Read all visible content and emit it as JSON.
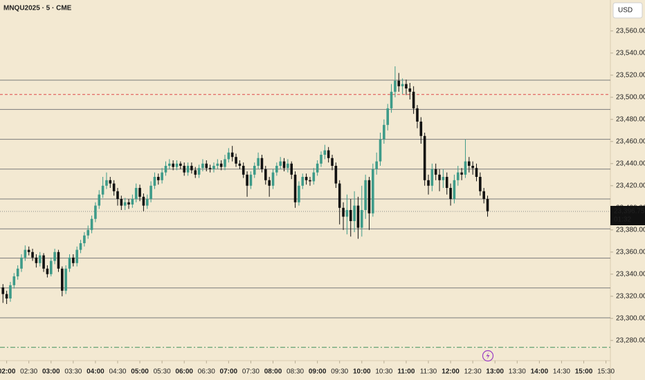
{
  "chart_data": {
    "type": "candlestick",
    "title": "MNQU2025 · 5 · CME",
    "currency": "USD",
    "up_color": "#3e9b89",
    "down_color": "#111111",
    "x": [
      115,
      120,
      125,
      130,
      135,
      140,
      145,
      150,
      155,
      160,
      165,
      170,
      175,
      180,
      185,
      190,
      195,
      200,
      205,
      210,
      215,
      220,
      225,
      230,
      235,
      240,
      245,
      250,
      255,
      260,
      265,
      270,
      275,
      280,
      285,
      290,
      295,
      300,
      305,
      310,
      315,
      320,
      325,
      330,
      335,
      340,
      345,
      350,
      355,
      360,
      365,
      370,
      375,
      380,
      385,
      390,
      395,
      400,
      405,
      410,
      415,
      420,
      425,
      430,
      435,
      440,
      445,
      450,
      455,
      460,
      465,
      470,
      475,
      480,
      485,
      490,
      495,
      500,
      505,
      510,
      515,
      520,
      525,
      530,
      535,
      540,
      545,
      550,
      555,
      560,
      565,
      570,
      575,
      580,
      585,
      590,
      595,
      600,
      605,
      610,
      615,
      620,
      625,
      630,
      635,
      640,
      645,
      650,
      655,
      660,
      665,
      670,
      675,
      680,
      685,
      690,
      695,
      700,
      705,
      710,
      715,
      720,
      725,
      730,
      735,
      740,
      745,
      750,
      755,
      760,
      765,
      770
    ],
    "open": [
      23328,
      23322,
      23318,
      23330,
      23338,
      23345,
      23355,
      23362,
      23360,
      23355,
      23350,
      23357,
      23345,
      23340,
      23352,
      23360,
      23345,
      23325,
      23345,
      23355,
      23350,
      23362,
      23368,
      23375,
      23380,
      23390,
      23402,
      23412,
      23420,
      23425,
      23422,
      23415,
      23408,
      23402,
      23405,
      23403,
      23408,
      23418,
      23410,
      23402,
      23408,
      23420,
      23428,
      23425,
      23432,
      23438,
      23440,
      23437,
      23440,
      23438,
      23432,
      23438,
      23434,
      23430,
      23436,
      23440,
      23436,
      23435,
      23438,
      23440,
      23437,
      23444,
      23450,
      23446,
      23440,
      23438,
      23430,
      23420,
      23430,
      23438,
      23445,
      23435,
      23425,
      23420,
      23432,
      23438,
      23442,
      23436,
      23440,
      23430,
      23405,
      23420,
      23428,
      23425,
      23424,
      23432,
      23440,
      23448,
      23452,
      23445,
      23438,
      23422,
      23400,
      23392,
      23398,
      23388,
      23402,
      23382,
      23398,
      23425,
      23395,
      23435,
      23442,
      23462,
      23475,
      23490,
      23505,
      23515,
      23510,
      23512,
      23508,
      23505,
      23490,
      23478,
      23465,
      23425,
      23420,
      23435,
      23430,
      23425,
      23428,
      23418,
      23408,
      23425,
      23432,
      23430,
      23442,
      23438,
      23436,
      23428,
      23415,
      23408
    ],
    "high": [
      23331,
      23325,
      23333,
      23341,
      23348,
      23358,
      23366,
      23365,
      23363,
      23358,
      23360,
      23359,
      23348,
      23355,
      23363,
      23362,
      23347,
      23348,
      23358,
      23358,
      23365,
      23371,
      23378,
      23384,
      23393,
      23405,
      23416,
      23428,
      23432,
      23428,
      23425,
      23418,
      23411,
      23409,
      23408,
      23412,
      23422,
      23421,
      23413,
      23412,
      23424,
      23432,
      23431,
      23436,
      23442,
      23444,
      23443,
      23443,
      23442,
      23441,
      23441,
      23441,
      23437,
      23439,
      23444,
      23443,
      23439,
      23441,
      23444,
      23443,
      23448,
      23454,
      23456,
      23449,
      23443,
      23441,
      23433,
      23433,
      23441,
      23450,
      23448,
      23438,
      23428,
      23435,
      23441,
      23446,
      23445,
      23444,
      23442,
      23433,
      23424,
      23431,
      23431,
      23428,
      23436,
      23443,
      23451,
      23457,
      23455,
      23448,
      23441,
      23425,
      23405,
      23412,
      23408,
      23415,
      23410,
      23420,
      23430,
      23428,
      23440,
      23450,
      23468,
      23480,
      23494,
      23512,
      23528,
      23522,
      23517,
      23516,
      23513,
      23510,
      23493,
      23482,
      23468,
      23430,
      23440,
      23440,
      23435,
      23435,
      23432,
      23422,
      23430,
      23438,
      23436,
      23462,
      23446,
      23442,
      23440,
      23432,
      23418,
      23411
    ],
    "low": [
      23314,
      23313,
      23315,
      23327,
      23335,
      23342,
      23352,
      23357,
      23352,
      23346,
      23347,
      23342,
      23337,
      23338,
      23349,
      23342,
      23320,
      23322,
      23342,
      23347,
      23347,
      23359,
      23365,
      23372,
      23377,
      23387,
      23399,
      23409,
      23417,
      23418,
      23411,
      23402,
      23398,
      23398,
      23399,
      23400,
      23405,
      23406,
      23397,
      23399,
      23405,
      23417,
      23421,
      23422,
      23429,
      23435,
      23434,
      23434,
      23435,
      23429,
      23429,
      23431,
      23427,
      23427,
      23433,
      23433,
      23432,
      23432,
      23435,
      23434,
      23434,
      23441,
      23442,
      23437,
      23435,
      23427,
      23410,
      23417,
      23427,
      23435,
      23432,
      23421,
      23410,
      23417,
      23429,
      23435,
      23433,
      23432,
      23426,
      23400,
      23402,
      23417,
      23421,
      23420,
      23421,
      23429,
      23437,
      23444,
      23441,
      23434,
      23418,
      23385,
      23380,
      23376,
      23374,
      23378,
      23372,
      23374,
      23390,
      23380,
      23392,
      23430,
      23438,
      23458,
      23470,
      23486,
      23500,
      23505,
      23503,
      23502,
      23498,
      23485,
      23472,
      23458,
      23420,
      23412,
      23415,
      23425,
      23415,
      23418,
      23412,
      23402,
      23404,
      23420,
      23425,
      23427,
      23432,
      23430,
      23424,
      23411,
      23404,
      23392
    ],
    "close": [
      23322,
      23318,
      23330,
      23338,
      23345,
      23355,
      23362,
      23360,
      23355,
      23350,
      23357,
      23345,
      23340,
      23352,
      23360,
      23345,
      23325,
      23345,
      23355,
      23350,
      23362,
      23368,
      23375,
      23380,
      23390,
      23402,
      23412,
      23420,
      23425,
      23422,
      23415,
      23408,
      23402,
      23405,
      23403,
      23408,
      23418,
      23410,
      23402,
      23408,
      23420,
      23428,
      23425,
      23432,
      23438,
      23440,
      23437,
      23440,
      23438,
      23432,
      23438,
      23434,
      23430,
      23436,
      23440,
      23436,
      23435,
      23438,
      23440,
      23437,
      23444,
      23450,
      23446,
      23440,
      23438,
      23430,
      23420,
      23430,
      23438,
      23445,
      23435,
      23425,
      23420,
      23432,
      23438,
      23442,
      23436,
      23440,
      23430,
      23405,
      23420,
      23428,
      23425,
      23424,
      23432,
      23440,
      23448,
      23452,
      23445,
      23438,
      23422,
      23400,
      23392,
      23398,
      23388,
      23402,
      23382,
      23398,
      23425,
      23395,
      23435,
      23442,
      23462,
      23475,
      23490,
      23505,
      23515,
      23510,
      23512,
      23508,
      23505,
      23490,
      23478,
      23465,
      23425,
      23420,
      23435,
      23430,
      23425,
      23428,
      23418,
      23408,
      23425,
      23432,
      23430,
      23442,
      23438,
      23436,
      23428,
      23415,
      23408,
      23397
    ],
    "xlim": [
      111,
      936
    ],
    "ylim": [
      23263,
      23588
    ],
    "xticks": [
      {
        "value": 120,
        "label": "02:00"
      },
      {
        "value": 150,
        "label": "02:30"
      },
      {
        "value": 180,
        "label": "03:00"
      },
      {
        "value": 210,
        "label": "03:30"
      },
      {
        "value": 240,
        "label": "04:00"
      },
      {
        "value": 270,
        "label": "04:30"
      },
      {
        "value": 300,
        "label": "05:00"
      },
      {
        "value": 330,
        "label": "05:30"
      },
      {
        "value": 360,
        "label": "06:00"
      },
      {
        "value": 390,
        "label": "06:30"
      },
      {
        "value": 420,
        "label": "07:00"
      },
      {
        "value": 450,
        "label": "07:30"
      },
      {
        "value": 480,
        "label": "08:00"
      },
      {
        "value": 510,
        "label": "08:30"
      },
      {
        "value": 540,
        "label": "09:00"
      },
      {
        "value": 570,
        "label": "09:30"
      },
      {
        "value": 600,
        "label": "10:00"
      },
      {
        "value": 630,
        "label": "10:30"
      },
      {
        "value": 660,
        "label": "11:00"
      },
      {
        "value": 690,
        "label": "11:30"
      },
      {
        "value": 720,
        "label": "12:00"
      },
      {
        "value": 750,
        "label": "12:30"
      },
      {
        "value": 780,
        "label": "13:00"
      },
      {
        "value": 810,
        "label": "13:30"
      },
      {
        "value": 840,
        "label": "14:00"
      },
      {
        "value": 870,
        "label": "14:30"
      },
      {
        "value": 900,
        "label": "15:00"
      },
      {
        "value": 930,
        "label": "15:30"
      }
    ],
    "yticks": [
      {
        "value": 23280,
        "label": "23,280.00"
      },
      {
        "value": 23300,
        "label": "23,300.00"
      },
      {
        "value": 23320,
        "label": "23,320.00"
      },
      {
        "value": 23340,
        "label": "23,340.00"
      },
      {
        "value": 23360,
        "label": "23,360.00"
      },
      {
        "value": 23380,
        "label": "23,380.00"
      },
      {
        "value": 23400,
        "label": "23,400.00"
      },
      {
        "value": 23420,
        "label": "23,420.00"
      },
      {
        "value": 23440,
        "label": "23,440.00"
      },
      {
        "value": 23460,
        "label": "23,460.00"
      },
      {
        "value": 23480,
        "label": "23,480.00"
      },
      {
        "value": 23500,
        "label": "23,500.00"
      },
      {
        "value": 23520,
        "label": "23,520.00"
      },
      {
        "value": 23540,
        "label": "23,540.00"
      },
      {
        "value": 23560,
        "label": "23,560.00"
      }
    ],
    "levels": [
      {
        "value": 23515.5,
        "color": "#7a7a7a",
        "style": "solid"
      },
      {
        "value": 23502.5,
        "color": "#e04848",
        "style": "dashed"
      },
      {
        "value": 23489,
        "color": "#7a7a7a",
        "style": "solid"
      },
      {
        "value": 23462,
        "color": "#7a7a7a",
        "style": "solid"
      },
      {
        "value": 23435,
        "color": "#7a7a7a",
        "style": "solid"
      },
      {
        "value": 23408,
        "color": "#7a7a7a",
        "style": "solid"
      },
      {
        "value": 23381,
        "color": "#7a7a7a",
        "style": "solid"
      },
      {
        "value": 23354.5,
        "color": "#7a7a7a",
        "style": "solid"
      },
      {
        "value": 23327.5,
        "color": "#7a7a7a",
        "style": "solid"
      },
      {
        "value": 23300.5,
        "color": "#7a7a7a",
        "style": "solid"
      },
      {
        "value": 23273.75,
        "color": "#3f8f5a",
        "style": "dashdot"
      }
    ],
    "last_price": {
      "value": 23396.75,
      "label": "23,396.75",
      "countdown": "01:32"
    }
  }
}
